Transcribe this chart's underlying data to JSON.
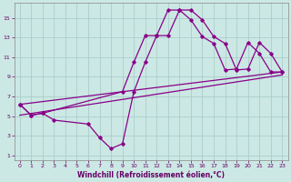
{
  "xlabel": "Windchill (Refroidissement éolien,°C)",
  "bg_color": "#cce8e4",
  "grid_color": "#aaceca",
  "line_color": "#880088",
  "xlim": [
    -0.5,
    23.5
  ],
  "ylim": [
    0.5,
    16.5
  ],
  "xticks": [
    0,
    1,
    2,
    3,
    4,
    5,
    6,
    7,
    8,
    9,
    10,
    11,
    12,
    13,
    14,
    15,
    16,
    17,
    18,
    19,
    20,
    21,
    22,
    23
  ],
  "yticks": [
    1,
    3,
    5,
    7,
    9,
    11,
    13,
    15
  ],
  "series1_x": [
    0,
    1,
    2,
    3,
    6,
    7,
    8,
    9,
    10,
    11,
    12,
    13,
    14,
    15,
    16,
    17,
    18,
    19,
    20,
    21,
    22,
    23
  ],
  "series1_y": [
    6.2,
    5.1,
    5.3,
    4.6,
    4.2,
    2.8,
    1.7,
    2.2,
    7.5,
    10.5,
    13.2,
    13.2,
    15.8,
    15.8,
    14.8,
    13.1,
    12.4,
    9.7,
    9.8,
    12.5,
    11.4,
    9.5
  ],
  "series2_x": [
    0,
    1,
    2,
    9,
    10,
    11,
    12,
    13,
    14,
    15,
    16,
    17,
    18,
    19,
    20,
    21,
    22,
    23
  ],
  "series2_y": [
    6.2,
    5.1,
    5.3,
    7.5,
    10.5,
    13.2,
    13.2,
    15.8,
    15.8,
    14.8,
    13.1,
    12.4,
    9.7,
    9.8,
    12.5,
    11.4,
    9.5,
    9.5
  ],
  "series3_x": [
    0,
    23
  ],
  "series3_y": [
    6.2,
    9.5
  ],
  "series4_x": [
    0,
    23
  ],
  "series4_y": [
    5.1,
    9.2
  ]
}
